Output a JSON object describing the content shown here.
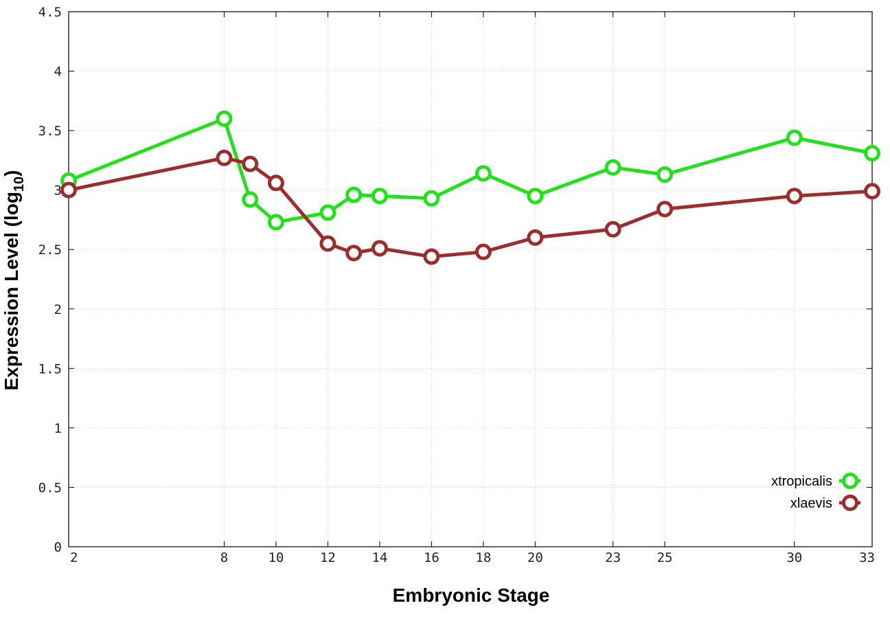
{
  "chart_data": {
    "type": "line",
    "xlabel": "Embryonic Stage",
    "ylabel_main": "Expression Level (log",
    "ylabel_sub": "10",
    "ylabel_close": ")",
    "xlim": [
      2,
      33
    ],
    "ylim": [
      0,
      4.5
    ],
    "x_ticks": [
      2,
      8,
      10,
      12,
      14,
      16,
      18,
      20,
      23,
      25,
      30,
      33
    ],
    "y_ticks": [
      0,
      0.5,
      1,
      1.5,
      2,
      2.5,
      3,
      3.5,
      4,
      4.5
    ],
    "y_tick_labels": [
      "0",
      "0.5",
      "1",
      "1.5",
      "2",
      "2.5",
      "3",
      "3.5",
      "4",
      "4.5"
    ],
    "grid": true,
    "legend_position": "bottom-right",
    "series": [
      {
        "name": "xtropicalis",
        "color": "#22e01a",
        "x": [
          2,
          8,
          9,
          10,
          12,
          13,
          14,
          16,
          18,
          20,
          23,
          25,
          30,
          33
        ],
        "y": [
          3.08,
          3.6,
          2.92,
          2.73,
          2.81,
          2.96,
          2.95,
          2.93,
          3.14,
          2.95,
          3.19,
          3.13,
          3.44,
          3.31
        ]
      },
      {
        "name": "xlaevis",
        "color": "#9b2d2d",
        "x": [
          2,
          8,
          9,
          10,
          12,
          13,
          14,
          16,
          18,
          20,
          23,
          25,
          30,
          33
        ],
        "y": [
          3.0,
          3.27,
          3.22,
          3.06,
          2.55,
          2.47,
          2.51,
          2.44,
          2.48,
          2.6,
          2.67,
          2.84,
          2.95,
          2.99
        ]
      }
    ]
  }
}
